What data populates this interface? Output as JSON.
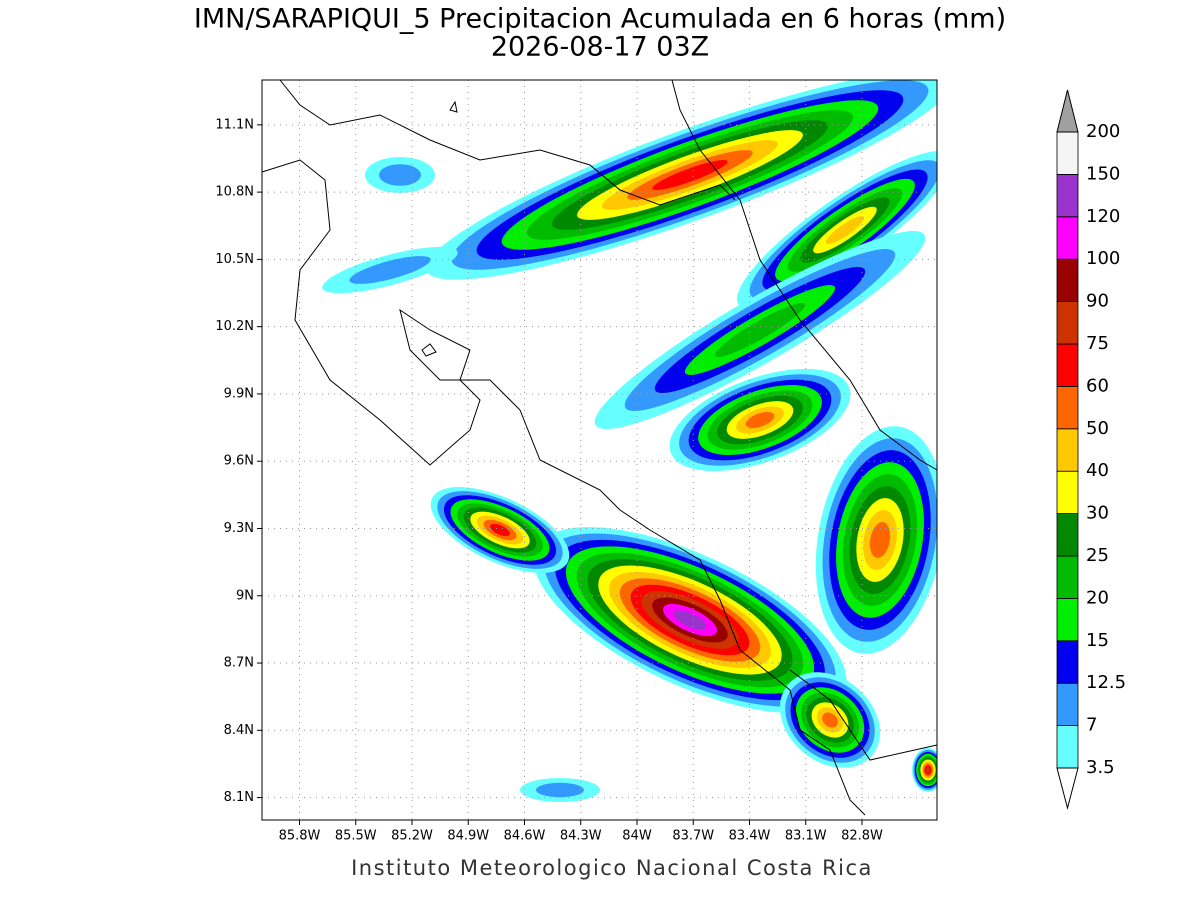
{
  "title": {
    "line1": "IMN/SARAPIQUI_5 Precipitacion Acumulada en 6 horas (mm)",
    "line2": "2026-08-17 03Z"
  },
  "map": {
    "xlim": [
      -86.0,
      -82.4
    ],
    "ylim": [
      8.0,
      11.3
    ],
    "xticks": [
      {
        "value": -85.8,
        "label": "85.8W"
      },
      {
        "value": -85.5,
        "label": "85.5W"
      },
      {
        "value": -85.2,
        "label": "85.2W"
      },
      {
        "value": -84.9,
        "label": "84.9W"
      },
      {
        "value": -84.6,
        "label": "84.6W"
      },
      {
        "value": -84.3,
        "label": "84.3W"
      },
      {
        "value": -84.0,
        "label": "84W"
      },
      {
        "value": -83.7,
        "label": "83.7W"
      },
      {
        "value": -83.4,
        "label": "83.4W"
      },
      {
        "value": -83.1,
        "label": "83.1W"
      },
      {
        "value": -82.8,
        "label": "82.8W"
      }
    ],
    "yticks": [
      {
        "value": 11.1,
        "label": "11.1N"
      },
      {
        "value": 10.8,
        "label": "10.8N"
      },
      {
        "value": 10.5,
        "label": "10.5N"
      },
      {
        "value": 10.2,
        "label": "10.2N"
      },
      {
        "value": 9.9,
        "label": "9.9N"
      },
      {
        "value": 9.6,
        "label": "9.6N"
      },
      {
        "value": 9.3,
        "label": "9.3N"
      },
      {
        "value": 9.0,
        "label": "9N"
      },
      {
        "value": 8.7,
        "label": "8.7N"
      },
      {
        "value": 8.4,
        "label": "8.4N"
      },
      {
        "value": 8.1,
        "label": "8.1N"
      }
    ],
    "grid": true
  },
  "colorbar": {
    "levels": [
      3.5,
      7,
      12.5,
      15,
      20,
      25,
      30,
      40,
      50,
      60,
      75,
      90,
      100,
      120,
      150,
      200
    ],
    "colors": [
      "#66ffff",
      "#3399ff",
      "#0000ee",
      "#00ee00",
      "#00bb00",
      "#008800",
      "#ffff00",
      "#ffc800",
      "#ff6600",
      "#ff0000",
      "#cc3300",
      "#990000",
      "#ff00ff",
      "#9933cc",
      "#f5f5f5"
    ],
    "under_color": "#ffffff",
    "over_color": "#a0a0a0"
  },
  "footer": "Instituto Meteorologico Nacional Costa Rica"
}
